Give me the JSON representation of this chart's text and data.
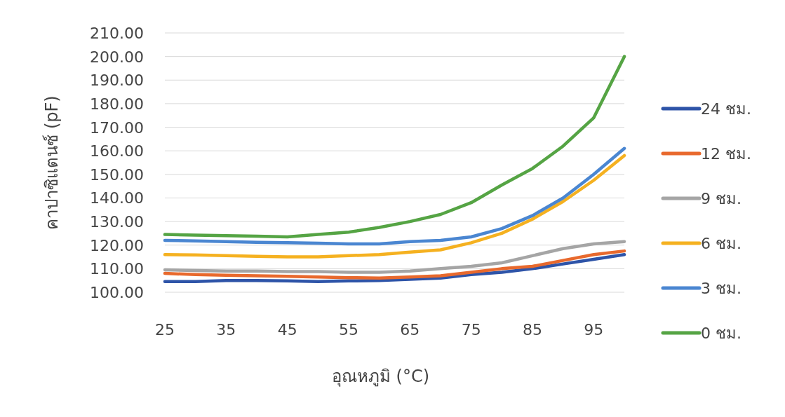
{
  "chart_data": {
    "type": "line",
    "xlabel": "อุณหภูมิ (°C)",
    "ylabel": "คาปาซิแตนซ์ (pF)",
    "x": [
      25,
      30,
      35,
      40,
      45,
      50,
      55,
      60,
      65,
      70,
      75,
      80,
      85,
      90,
      95,
      100
    ],
    "xlim": [
      25,
      100
    ],
    "xticks": [
      25,
      35,
      45,
      55,
      65,
      75,
      85,
      95
    ],
    "ylim": [
      100,
      210
    ],
    "yticks": [
      {
        "value": 100,
        "label": "100.00"
      },
      {
        "value": 110,
        "label": "110.00"
      },
      {
        "value": 120,
        "label": "120.00"
      },
      {
        "value": 130,
        "label": "130.00"
      },
      {
        "value": 140,
        "label": "140.00"
      },
      {
        "value": 150,
        "label": "150.00"
      },
      {
        "value": 160,
        "label": "160.00"
      },
      {
        "value": 170,
        "label": "170.00"
      },
      {
        "value": 180,
        "label": "180.00"
      },
      {
        "value": 190,
        "label": "190.00"
      },
      {
        "value": 200,
        "label": "200.00"
      },
      {
        "value": 210,
        "label": "210.00"
      }
    ],
    "grid": "y",
    "legend": "right",
    "marker": "none",
    "line_style": "solid",
    "series": [
      {
        "name": "24 ชม.",
        "color": "#2e54a8",
        "values": [
          104.5,
          104.5,
          105,
          105,
          104.8,
          104.5,
          104.8,
          105,
          105.5,
          106,
          107.5,
          108.5,
          110,
          112,
          114,
          116
        ]
      },
      {
        "name": "12 ชม.",
        "color": "#e8692d",
        "values": [
          108,
          107.5,
          107.2,
          107,
          106.8,
          106.5,
          106.2,
          106,
          106.5,
          107,
          108.5,
          110,
          111,
          113.5,
          116,
          117.5
        ]
      },
      {
        "name": "9 ชม.",
        "color": "#a5a5a5",
        "values": [
          109.5,
          109.2,
          109,
          109,
          108.8,
          108.8,
          108.5,
          108.5,
          109,
          110,
          111,
          112.5,
          115.5,
          118.5,
          120.5,
          121.5
        ]
      },
      {
        "name": "6 ชม.",
        "color": "#f5b120",
        "values": [
          116,
          115.8,
          115.5,
          115.2,
          115,
          115,
          115.5,
          116,
          117,
          118,
          121,
          125,
          131,
          138.5,
          147.5,
          158
        ]
      },
      {
        "name": "3 ชม.",
        "color": "#4a86d1",
        "values": [
          122,
          121.8,
          121.5,
          121.2,
          121,
          120.8,
          120.5,
          120.5,
          121.5,
          122,
          123.5,
          127,
          132.5,
          140,
          150,
          161
        ]
      },
      {
        "name": "0 ชม.",
        "color": "#55a444",
        "values": [
          124.5,
          124.2,
          124,
          123.8,
          123.5,
          124.5,
          125.5,
          127.5,
          130,
          133,
          138,
          145.5,
          152.5,
          162,
          174,
          200
        ]
      }
    ]
  }
}
